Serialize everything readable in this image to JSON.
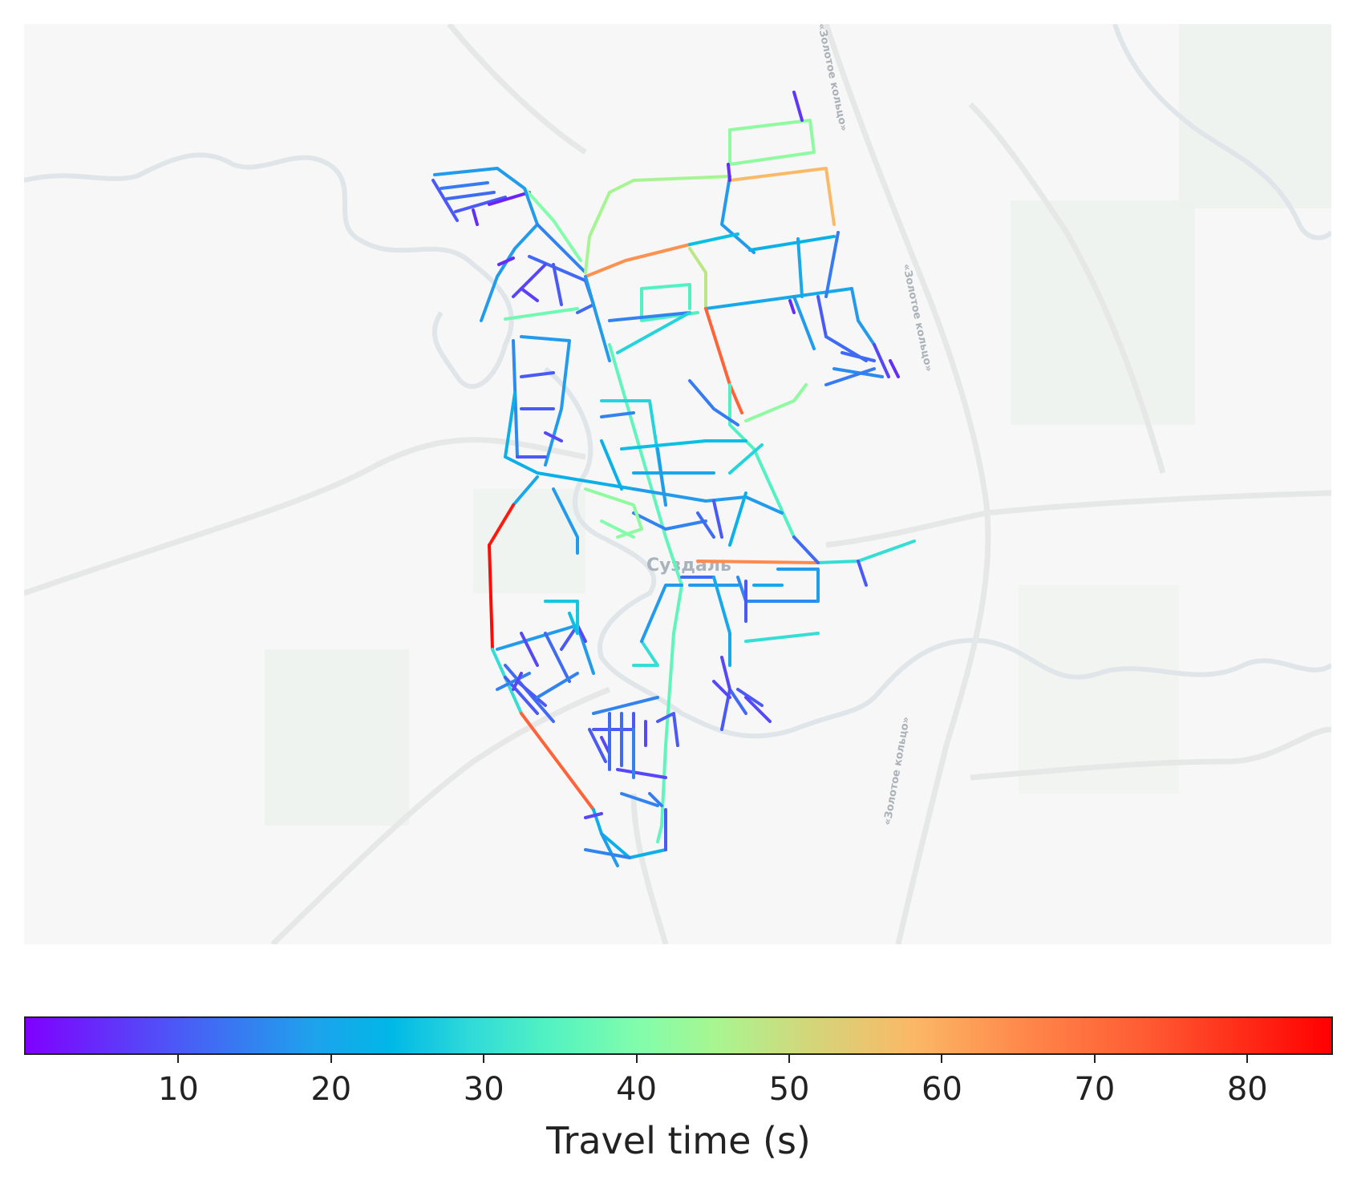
{
  "map": {
    "city_label": "Суздаль",
    "road_labels": [
      "«Золотое кольцо»",
      "«Золотое кольцо»",
      "«Золотое кольцо»"
    ],
    "background_color": "#f6f7f6"
  },
  "colorbar": {
    "label": "Travel time (s)",
    "min": 0,
    "max": 85.5,
    "ticks": [
      10,
      20,
      30,
      40,
      50,
      60,
      70,
      80
    ],
    "colormap": "rainbow"
  }
}
